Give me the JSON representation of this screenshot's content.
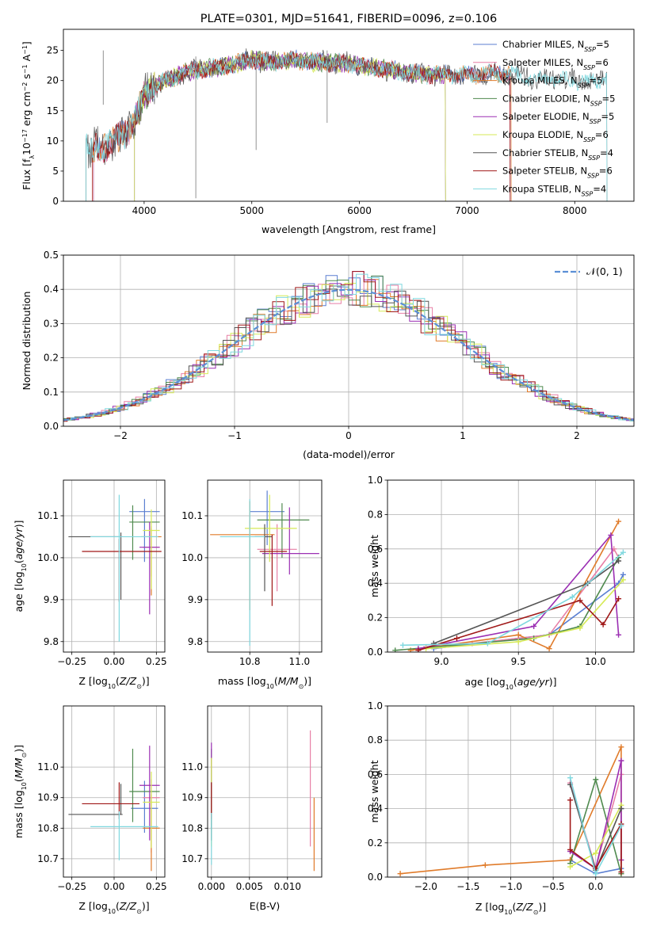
{
  "colors": {
    "Chabrier MILES": "#5b7fd1",
    "Salpeter MILES": "#e87fa6",
    "Kroupa MILES": "#e07b2a",
    "Chabrier ELODIE": "#4f8a4e",
    "Salpeter ELODIE": "#9b2fb3",
    "Kroupa ELODIE": "#d6ea57",
    "Chabrier STELIB": "#555555",
    "Salpeter STELIB": "#a01818",
    "Kroupa STELIB": "#7fd8df"
  },
  "chart_data": [
    {
      "id": "spectrum",
      "type": "line",
      "title": "PLATE=0301, MJD=51641, FIBERID=0096, z=0.106",
      "xlabel": "wavelength [Angstrom, rest frame]",
      "ylabel": "Flux [f_λ10^{-17} erg cm^{-2} s^{-1} A^{-1}]",
      "xlim": [
        3250,
        8550
      ],
      "ylim": [
        0,
        28.5
      ],
      "xticks": [
        "4000",
        "5000",
        "6000",
        "7000",
        "8000"
      ],
      "yticks": [
        "0",
        "5",
        "10",
        "15",
        "20",
        "25"
      ],
      "legend": "top-right",
      "legend_entries": [
        {
          "model": "Chabrier MILES",
          "nssp": "5"
        },
        {
          "model": "Salpeter MILES",
          "nssp": "6"
        },
        {
          "model": "Kroupa MILES",
          "nssp": "5"
        },
        {
          "model": "Chabrier ELODIE",
          "nssp": "5"
        },
        {
          "model": "Salpeter ELODIE",
          "nssp": "5"
        },
        {
          "model": "Kroupa ELODIE",
          "nssp": "6"
        },
        {
          "model": "Chabrier STELIB",
          "nssp": "4"
        },
        {
          "model": "Salpeter STELIB",
          "nssp": "6"
        },
        {
          "model": "Kroupa STELIB",
          "nssp": "4"
        }
      ],
      "observed_shape": {
        "x": [
          3500,
          3600,
          3700,
          3800,
          3900,
          4000,
          4100,
          4200,
          4400,
          4600,
          4800,
          5000,
          5200,
          5400,
          5600,
          5800,
          6000,
          6200,
          6400,
          6600,
          6800,
          7000,
          7200,
          7400,
          7600,
          7800,
          8000,
          8200,
          8300
        ],
        "y": [
          8.5,
          9.0,
          9.5,
          11.0,
          13.0,
          17.5,
          19.0,
          20.0,
          21.5,
          22.0,
          22.5,
          23.5,
          23.0,
          23.5,
          23.0,
          23.0,
          22.5,
          22.0,
          21.5,
          21.0,
          21.0,
          20.8,
          21.3,
          21.0,
          20.5,
          20.2,
          20.0,
          19.8,
          20.5
        ]
      }
    },
    {
      "id": "residuals",
      "type": "line",
      "xlabel": "(data-model)/error",
      "ylabel": "Normed distribution",
      "xlim": [
        -2.5,
        2.5
      ],
      "ylim": [
        0,
        0.5
      ],
      "xticks": [
        "−2",
        "−1",
        "0",
        "1",
        "2"
      ],
      "yticks": [
        "0.0",
        "0.1",
        "0.2",
        "0.3",
        "0.4",
        "0.5"
      ],
      "legend": "top-right",
      "legend_entry": "𝒩(0, 1)",
      "gaussian_mean": 0,
      "gaussian_sigma": 1,
      "histogram_bin_width": 0.1
    },
    {
      "id": "age_vs_Z",
      "type": "scatter",
      "xlabel": "Z [log10(Z/Z⊙)]",
      "ylabel": "age  [log10(age/yr)]",
      "xlim": [
        -0.3,
        0.3
      ],
      "ylim": [
        9.775,
        10.185
      ],
      "xticks": [
        "−0.25",
        "0.00",
        "0.25"
      ],
      "yticks": [
        "9.8",
        "9.9",
        "10.0",
        "10.1"
      ],
      "errorbars": [
        {
          "model": "Chabrier MILES",
          "x": 0.18,
          "xerr": [
            0.09,
            0.09
          ],
          "y": 10.11,
          "yerr": [
            0.12,
            0.03
          ]
        },
        {
          "model": "Salpeter MILES",
          "x": 0.22,
          "xerr": [
            0.05,
            0.05
          ],
          "y": 10.025,
          "yerr": [
            0.07,
            0.05
          ]
        },
        {
          "model": "Kroupa MILES",
          "x": 0.22,
          "xerr": [
            0.06,
            0.06
          ],
          "y": 10.05,
          "yerr": [
            0.14,
            0.02
          ]
        },
        {
          "model": "Chabrier ELODIE",
          "x": 0.11,
          "xerr": [
            0.02,
            0.16
          ],
          "y": 10.085,
          "yerr": [
            0.09,
            0.04
          ]
        },
        {
          "model": "Salpeter ELODIE",
          "x": 0.21,
          "xerr": [
            0.06,
            0.06
          ],
          "y": 10.025,
          "yerr": [
            0.16,
            0.06
          ]
        },
        {
          "model": "Kroupa ELODIE",
          "x": 0.22,
          "xerr": [
            0.05,
            0.05
          ],
          "y": 10.065,
          "yerr": [
            0.14,
            0.05
          ]
        },
        {
          "model": "Chabrier STELIB",
          "x": 0.04,
          "xerr": [
            0.31,
            0.01
          ],
          "y": 10.05,
          "yerr": [
            0.15,
            0.01
          ]
        },
        {
          "model": "Salpeter STELIB",
          "x": 0.03,
          "xerr": [
            0.22,
            0.25
          ],
          "y": 10.015,
          "yerr": [
            0.12,
            0.03
          ]
        },
        {
          "model": "Kroupa STELIB",
          "x": 0.03,
          "xerr": [
            0.17,
            0.23
          ],
          "y": 10.05,
          "yerr": [
            0.25,
            0.1
          ]
        }
      ]
    },
    {
      "id": "age_vs_mass",
      "type": "scatter",
      "xlabel": "mass [log10(M/M⊙)]",
      "xlim": [
        10.63,
        11.09
      ],
      "ylim": [
        9.775,
        10.185
      ],
      "xticks": [
        "10.8",
        "11.0"
      ],
      "yticks": [
        "9.8",
        "9.9",
        "10.0",
        "10.1"
      ],
      "errorbars": [
        {
          "model": "Chabrier MILES",
          "x": 10.87,
          "xerr": [
            0.07,
            0.07
          ],
          "y": 10.11,
          "yerr": [
            0.08,
            0.05
          ]
        },
        {
          "model": "Salpeter MILES",
          "x": 10.91,
          "xerr": [
            0.08,
            0.08
          ],
          "y": 10.02,
          "yerr": [
            0.1,
            0.06
          ]
        },
        {
          "model": "Kroupa MILES",
          "x": 10.8,
          "xerr": [
            0.16,
            0.1
          ],
          "y": 10.055,
          "yerr": [
            0.18,
            0.08
          ]
        },
        {
          "model": "Chabrier ELODIE",
          "x": 10.93,
          "xerr": [
            0.1,
            0.11
          ],
          "y": 10.09,
          "yerr": [
            0.09,
            0.04
          ]
        },
        {
          "model": "Salpeter ELODIE",
          "x": 10.96,
          "xerr": [
            0.11,
            0.12
          ],
          "y": 10.01,
          "yerr": [
            0.05,
            0.11
          ]
        },
        {
          "model": "Kroupa ELODIE",
          "x": 10.88,
          "xerr": [
            0.1,
            0.11
          ],
          "y": 10.07,
          "yerr": [
            0.08,
            0.08
          ]
        },
        {
          "model": "Chabrier STELIB",
          "x": 10.86,
          "xerr": [
            0.04,
            0.03
          ],
          "y": 10.05,
          "yerr": [
            0.13,
            0.03
          ]
        },
        {
          "model": "Salpeter STELIB",
          "x": 10.89,
          "xerr": [
            0.05,
            0.06
          ],
          "y": 10.015,
          "yerr": [
            0.13,
            0.04
          ]
        },
        {
          "model": "Kroupa STELIB",
          "x": 10.8,
          "xerr": [
            0.12,
            0.06
          ],
          "y": 10.05,
          "yerr": [
            0.26,
            0.09
          ]
        }
      ]
    },
    {
      "id": "weight_vs_age",
      "type": "line",
      "xlabel": "age  [log10(age/yr)]",
      "ylabel": "mass weight",
      "xlim": [
        8.65,
        10.25
      ],
      "ylim": [
        0,
        1
      ],
      "xticks": [
        "9.0",
        "9.5",
        "10.0"
      ],
      "yticks": [
        "0.0",
        "0.2",
        "0.4",
        "0.6",
        "0.8",
        "1.0"
      ],
      "series": [
        {
          "model": "Chabrier MILES",
          "x": [
            8.95,
            9.5,
            9.7,
            10.15,
            10.18
          ],
          "y": [
            0.02,
            0.08,
            0.1,
            0.4,
            0.45
          ]
        },
        {
          "model": "Salpeter MILES",
          "x": [
            8.9,
            9.2,
            9.7,
            10.12,
            10.15
          ],
          "y": [
            0.03,
            0.05,
            0.1,
            0.6,
            0.55
          ]
        },
        {
          "model": "Kroupa MILES",
          "x": [
            8.8,
            9.5,
            9.7,
            10.15
          ],
          "y": [
            0.01,
            0.1,
            0.02,
            0.76
          ]
        },
        {
          "model": "Chabrier ELODIE",
          "x": [
            8.7,
            9.6,
            9.9,
            10.15
          ],
          "y": [
            0.01,
            0.08,
            0.15,
            0.55
          ]
        },
        {
          "model": "Salpeter ELODIE",
          "x": [
            8.85,
            9.6,
            10.1,
            10.15
          ],
          "y": [
            0.02,
            0.15,
            0.68,
            0.1
          ]
        },
        {
          "model": "Kroupa ELODIE",
          "x": [
            8.9,
            9.5,
            9.9,
            10.18
          ],
          "y": [
            0.02,
            0.06,
            0.14,
            0.42
          ]
        },
        {
          "model": "Chabrier STELIB",
          "x": [
            8.95,
            9.95,
            10.15
          ],
          "y": [
            0.05,
            0.4,
            0.53
          ]
        },
        {
          "model": "Salpeter STELIB",
          "x": [
            8.85,
            9.1,
            9.9,
            10.05,
            10.15
          ],
          "y": [
            0.01,
            0.08,
            0.3,
            0.16,
            0.31
          ]
        },
        {
          "model": "Kroupa STELIB",
          "x": [
            8.75,
            9.3,
            9.85,
            10.18
          ],
          "y": [
            0.04,
            0.05,
            0.32,
            0.58
          ]
        }
      ]
    },
    {
      "id": "mass_vs_Z",
      "type": "scatter",
      "xlabel": "Z [log10(Z/Z⊙)]",
      "ylabel": "mass [log10(M/M⊙)]",
      "xlim": [
        -0.3,
        0.3
      ],
      "ylim": [
        10.64,
        11.2
      ],
      "xticks": [
        "−0.25",
        "0.00",
        "0.25"
      ],
      "yticks": [
        "10.7",
        "10.8",
        "10.9",
        "11.0"
      ],
      "errorbars": [
        {
          "model": "Chabrier MILES",
          "x": 0.18,
          "xerr": [
            0.08,
            0.08
          ],
          "y": 10.865,
          "yerr": [
            0.08,
            0.09
          ]
        },
        {
          "model": "Salpeter MILES",
          "x": 0.22,
          "xerr": [
            0.05,
            0.05
          ],
          "y": 10.9,
          "yerr": [
            0.18,
            0.06
          ]
        },
        {
          "model": "Kroupa MILES",
          "x": 0.22,
          "xerr": [
            0.05,
            0.05
          ],
          "y": 10.8,
          "yerr": [
            0.14,
            0.11
          ]
        },
        {
          "model": "Chabrier ELODIE",
          "x": 0.11,
          "xerr": [
            0.02,
            0.16
          ],
          "y": 10.92,
          "yerr": [
            0.1,
            0.14
          ]
        },
        {
          "model": "Salpeter ELODIE",
          "x": 0.21,
          "xerr": [
            0.06,
            0.06
          ],
          "y": 10.94,
          "yerr": [
            0.18,
            0.13
          ]
        },
        {
          "model": "Kroupa ELODIE",
          "x": 0.22,
          "xerr": [
            0.05,
            0.05
          ],
          "y": 10.885,
          "yerr": [
            0.15,
            0.1
          ]
        },
        {
          "model": "Chabrier STELIB",
          "x": 0.04,
          "xerr": [
            0.31,
            0.01
          ],
          "y": 10.845,
          "yerr": [
            0.0,
            0.1
          ]
        },
        {
          "model": "Salpeter STELIB",
          "x": 0.03,
          "xerr": [
            0.22,
            0.12
          ],
          "y": 10.88,
          "yerr": [
            0.05,
            0.07
          ]
        },
        {
          "model": "Kroupa STELIB",
          "x": 0.03,
          "xerr": [
            0.17,
            0.23
          ],
          "y": 10.805,
          "yerr": [
            0.11,
            0.05
          ]
        }
      ]
    },
    {
      "id": "mass_vs_ebv",
      "type": "scatter",
      "xlabel": "E(B-V)",
      "xlim": [
        -0.0005,
        0.0145
      ],
      "ylim": [
        10.64,
        11.2
      ],
      "xticks": [
        "0.000",
        "0.005",
        "0.010"
      ],
      "yticks": [
        "10.7",
        "10.8",
        "10.9",
        "11.0"
      ],
      "errorbars": [
        {
          "model": "Chabrier MILES",
          "x": 0.0,
          "y": 10.9,
          "yerr": [
            0.1,
            0.09
          ]
        },
        {
          "model": "Salpeter MILES",
          "x": 0.013,
          "y": 10.9,
          "yerr": [
            0.16,
            0.22
          ]
        },
        {
          "model": "Kroupa MILES",
          "x": 0.0135,
          "y": 10.8,
          "yerr": [
            0.14,
            0.1
          ]
        },
        {
          "model": "Chabrier ELODIE",
          "x": 0.0,
          "y": 10.95,
          "yerr": [
            0.14,
            0.11
          ]
        },
        {
          "model": "Salpeter ELODIE",
          "x": 0.0,
          "y": 10.95,
          "yerr": [
            0.1,
            0.13
          ]
        },
        {
          "model": "Kroupa ELODIE",
          "x": 0.0,
          "y": 10.88,
          "yerr": [
            0.14,
            0.15
          ]
        },
        {
          "model": "Chabrier STELIB",
          "x": 0.0,
          "y": 10.85,
          "yerr": [
            0.09,
            0.1
          ]
        },
        {
          "model": "Salpeter STELIB",
          "x": 0.0,
          "y": 10.88,
          "yerr": [
            0.05,
            0.07
          ]
        },
        {
          "model": "Kroupa STELIB",
          "x": 0.0,
          "y": 10.8,
          "yerr": [
            0.12,
            0.05
          ]
        }
      ]
    },
    {
      "id": "weight_vs_Z",
      "type": "line",
      "xlabel": "Z [log10(Z/Z⊙)]",
      "ylabel": "mass weight",
      "xlim": [
        -2.45,
        0.45
      ],
      "ylim": [
        0,
        1
      ],
      "xticks": [
        "−2.0",
        "−1.5",
        "−1.0",
        "−0.5",
        "0.0"
      ],
      "yticks": [
        "0.0",
        "0.2",
        "0.4",
        "0.6",
        "0.8",
        "1.0"
      ],
      "series": [
        {
          "model": "Chabrier MILES",
          "x": [
            -0.3,
            0.0,
            0.3,
            0.3
          ],
          "y": [
            0.1,
            0.02,
            0.05,
            0.4
          ]
        },
        {
          "model": "Salpeter MILES",
          "x": [
            -0.3,
            0.0,
            0.3
          ],
          "y": [
            0.55,
            0.05,
            0.6
          ]
        },
        {
          "model": "Kroupa MILES",
          "x": [
            -2.3,
            -1.3,
            -0.3,
            0.3,
            0.3
          ],
          "y": [
            0.02,
            0.07,
            0.1,
            0.76,
            0.02
          ]
        },
        {
          "model": "Chabrier ELODIE",
          "x": [
            -0.3,
            0.0,
            0.3
          ],
          "y": [
            0.08,
            0.57,
            0.02
          ]
        },
        {
          "model": "Salpeter ELODIE",
          "x": [
            -0.3,
            0.0,
            0.3,
            0.3
          ],
          "y": [
            0.15,
            0.05,
            0.68,
            0.1
          ]
        },
        {
          "model": "Kroupa ELODIE",
          "x": [
            -0.3,
            0.0,
            0.3
          ],
          "y": [
            0.06,
            0.14,
            0.42
          ]
        },
        {
          "model": "Chabrier STELIB",
          "x": [
            -0.3,
            0.0,
            0.3
          ],
          "y": [
            0.54,
            0.04,
            0.4
          ]
        },
        {
          "model": "Salpeter STELIB",
          "x": [
            -0.3,
            -0.3,
            0.0,
            0.3,
            0.3
          ],
          "y": [
            0.45,
            0.16,
            0.05,
            0.31,
            0.03
          ]
        },
        {
          "model": "Kroupa STELIB",
          "x": [
            -0.3,
            0.0,
            0.3
          ],
          "y": [
            0.58,
            0.02,
            0.3
          ]
        }
      ]
    }
  ]
}
